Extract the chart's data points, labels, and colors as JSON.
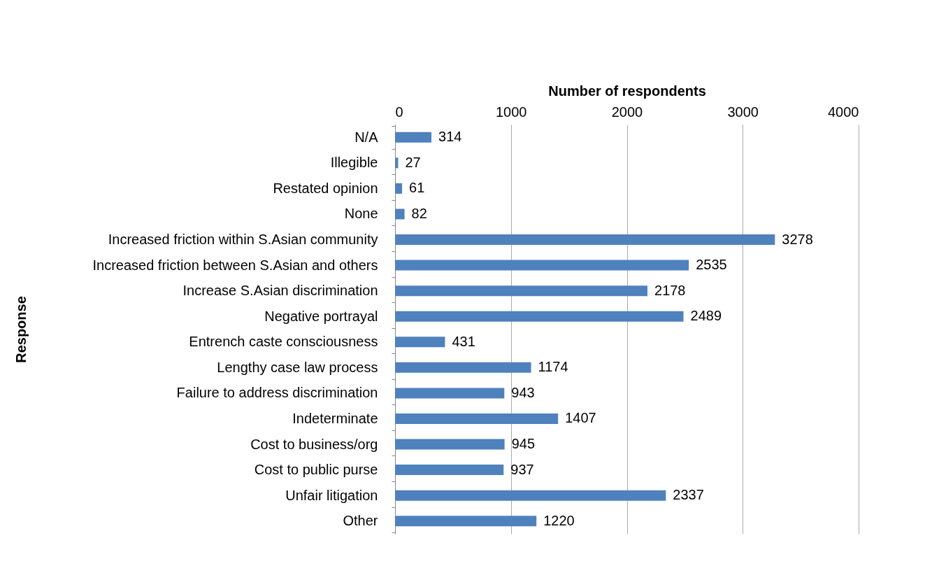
{
  "chart_data": {
    "type": "bar",
    "orientation": "horizontal",
    "xlabel": "Number of respondents",
    "ylabel": "Response",
    "categories": [
      "N/A",
      "Illegible",
      "Restated opinion",
      "None",
      "Increased friction within S.Asian community",
      "Increased friction between S.Asian and others",
      "Increase S.Asian discrimination",
      "Negative portrayal",
      "Entrench caste consciousness",
      "Lengthy case law process",
      "Failure to address discrimination",
      "Indeterminate",
      "Cost to business/org",
      "Cost to public purse",
      "Unfair litigation",
      "Other"
    ],
    "values": [
      314,
      27,
      61,
      82,
      3278,
      2535,
      2178,
      2489,
      431,
      1174,
      943,
      1407,
      945,
      937,
      2337,
      1220
    ],
    "color": "#4f81bd",
    "xlim": [
      0,
      4000
    ],
    "xticks": [
      0,
      1000,
      2000,
      3000,
      4000
    ],
    "grid": "x",
    "data_labels": true
  }
}
